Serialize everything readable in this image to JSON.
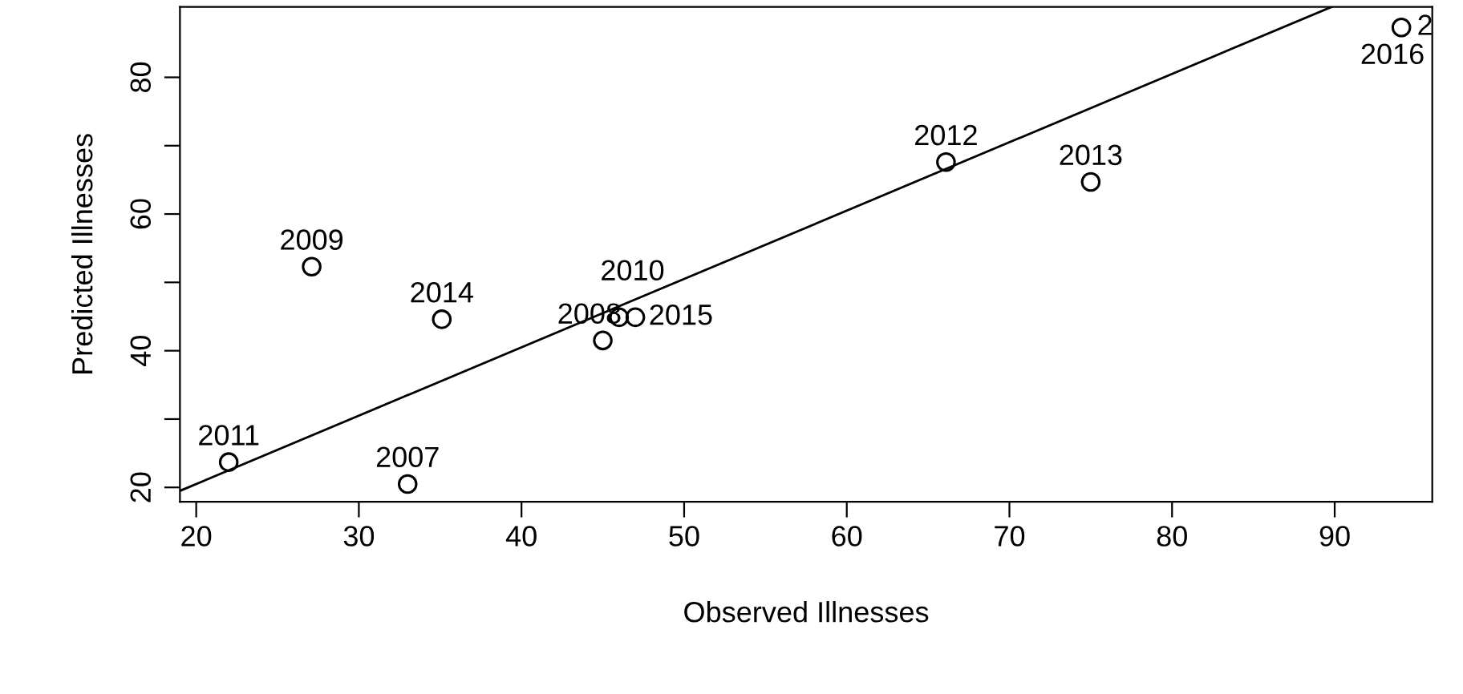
{
  "chart_data": {
    "type": "scatter",
    "xlabel": "Observed Illnesses",
    "ylabel": "Predicted Illnesses",
    "xlim": [
      19,
      96
    ],
    "ylim": [
      17.9,
      90.3
    ],
    "xticks": [
      20,
      30,
      40,
      50,
      60,
      70,
      80,
      90
    ],
    "yticks": [
      20,
      {
        "value": 30,
        "label": null
      },
      40,
      {
        "value": 50,
        "label": null
      },
      60,
      {
        "value": 70,
        "label": null
      },
      80
    ],
    "grid": false,
    "legend": false,
    "series": [
      {
        "marker": "circle",
        "color": "#000000",
        "x": [
          33,
          45,
          27.1,
          46,
          22,
          66.1,
          75,
          35.1,
          47,
          94.1
        ],
        "values": [
          20.5,
          41.5,
          52.3,
          44.9,
          23.7,
          67.6,
          64.7,
          44.6,
          44.9,
          87.3
        ]
      },
      {
        "type": "line",
        "marker": "none",
        "color": "#000000",
        "line_style": "solid",
        "x": [
          19,
          89.8
        ],
        "values": [
          19.5,
          90.3
        ]
      }
    ],
    "annotations": [
      {
        "text": "2007",
        "x": 33,
        "y": 20.5
      },
      {
        "text": "2008",
        "x": 45,
        "y": 41.5
      },
      {
        "text": "2009",
        "x": 27.1,
        "y": 52.3
      },
      {
        "text": "2010",
        "x": 46,
        "y": 44.9
      },
      {
        "text": "2011",
        "x": 22,
        "y": 23.7
      },
      {
        "text": "2012",
        "x": 66.1,
        "y": 67.6
      },
      {
        "text": "2013",
        "x": 75,
        "y": 64.7
      },
      {
        "text": "2014",
        "x": 35.1,
        "y": 44.6
      },
      {
        "text": "2015",
        "x": 47,
        "y": 44.9
      },
      {
        "text": "2016",
        "x": 94.1,
        "y": 87.3
      },
      {
        "text": "2",
        "x": 94.1,
        "y": 87.3
      }
    ]
  }
}
